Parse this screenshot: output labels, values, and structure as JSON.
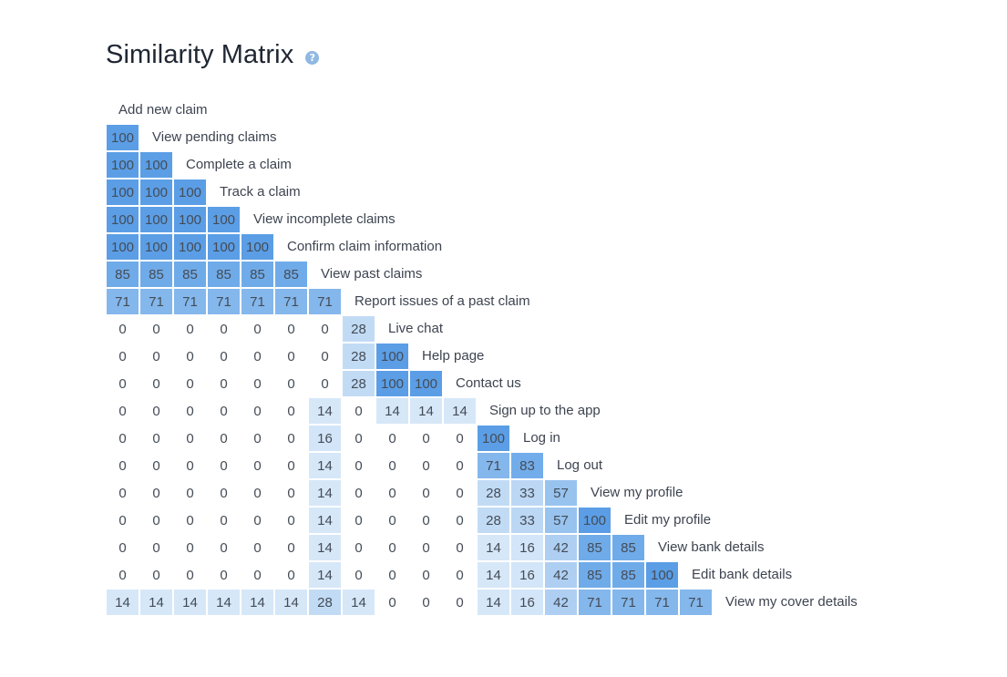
{
  "page": {
    "title": "Similarity Matrix",
    "help_icon": "question-circle-icon",
    "help_glyph": "?"
  },
  "colors": {
    "scale_low": "#eaf3fb",
    "scale_high": "#5b9ee6",
    "zero_cell": "#ffffff",
    "text": "#444c56"
  },
  "chart_data": {
    "type": "heatmap",
    "title": "Similarity Matrix",
    "layout": "lower-triangular",
    "value_range": [
      0,
      100
    ],
    "labels": [
      "Add new claim",
      "View pending claims",
      "Complete a claim",
      "Track a claim",
      "View incomplete claims",
      "Confirm claim information",
      "View past claims",
      "Report issues of a past claim",
      "Live chat",
      "Help page",
      "Contact us",
      "Sign up to the app",
      "Log in",
      "Log out",
      "View my profile",
      "Edit my profile",
      "View bank details",
      "Edit bank details",
      "View my cover details"
    ],
    "rows": [
      [],
      [
        100
      ],
      [
        100,
        100
      ],
      [
        100,
        100,
        100
      ],
      [
        100,
        100,
        100,
        100
      ],
      [
        100,
        100,
        100,
        100,
        100
      ],
      [
        85,
        85,
        85,
        85,
        85,
        85
      ],
      [
        71,
        71,
        71,
        71,
        71,
        71,
        71
      ],
      [
        0,
        0,
        0,
        0,
        0,
        0,
        0,
        28
      ],
      [
        0,
        0,
        0,
        0,
        0,
        0,
        0,
        28,
        100
      ],
      [
        0,
        0,
        0,
        0,
        0,
        0,
        0,
        28,
        100,
        100
      ],
      [
        0,
        0,
        0,
        0,
        0,
        0,
        14,
        0,
        14,
        14,
        14
      ],
      [
        0,
        0,
        0,
        0,
        0,
        0,
        16,
        0,
        0,
        0,
        0,
        100
      ],
      [
        0,
        0,
        0,
        0,
        0,
        0,
        14,
        0,
        0,
        0,
        0,
        71,
        83
      ],
      [
        0,
        0,
        0,
        0,
        0,
        0,
        14,
        0,
        0,
        0,
        0,
        28,
        33,
        57
      ],
      [
        0,
        0,
        0,
        0,
        0,
        0,
        14,
        0,
        0,
        0,
        0,
        28,
        33,
        57,
        100
      ],
      [
        0,
        0,
        0,
        0,
        0,
        0,
        14,
        0,
        0,
        0,
        0,
        14,
        16,
        42,
        85,
        85
      ],
      [
        0,
        0,
        0,
        0,
        0,
        0,
        14,
        0,
        0,
        0,
        0,
        14,
        16,
        42,
        85,
        85,
        100
      ],
      [
        14,
        14,
        14,
        14,
        14,
        14,
        28,
        14,
        0,
        0,
        0,
        14,
        16,
        42,
        71,
        71,
        71,
        71
      ]
    ]
  }
}
